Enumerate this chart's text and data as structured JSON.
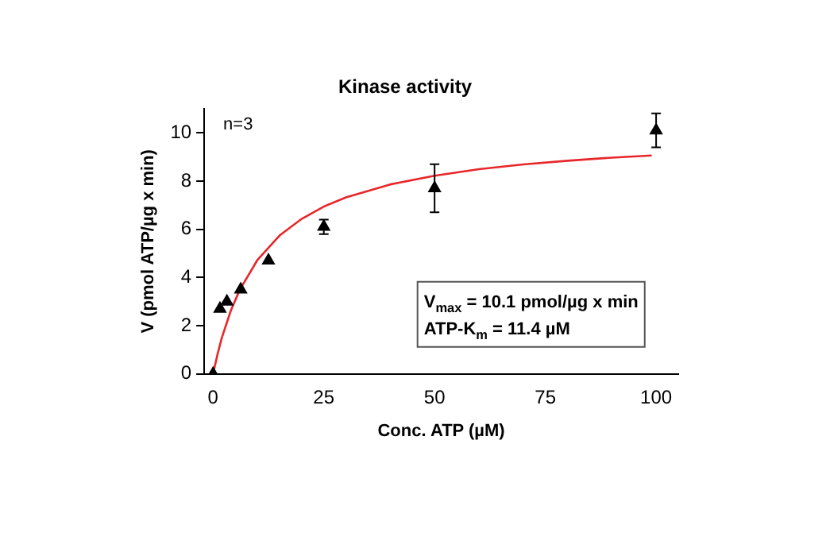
{
  "chart_data": {
    "type": "scatter",
    "title": "Kinase activity",
    "xlabel": "Conc. ATP (µM)",
    "ylabel": "V (pmol ATP/µg x min)",
    "xlim": [
      -2,
      105
    ],
    "xticks": [
      0,
      25,
      50,
      75,
      100
    ],
    "ylim": [
      0,
      11
    ],
    "yticks": [
      0,
      2,
      4,
      6,
      8,
      10
    ],
    "grid": false,
    "legend": false,
    "marker": "triangle",
    "annotations": [
      "n=3",
      "V$_{max}$ = 10.1 pmol/µg x min",
      "ATP-K$_{m}$ = 11.4 µM"
    ],
    "series": [
      {
        "type": "scatter",
        "color": "#000000",
        "x": [
          0,
          1.56,
          3.125,
          6.25,
          12.5,
          25,
          50,
          100
        ],
        "values": [
          0,
          2.7,
          3.0,
          3.5,
          4.7,
          6.1,
          7.7,
          10.1
        ],
        "errors": [
          null,
          null,
          null,
          null,
          null,
          0.3,
          1.0,
          0.7
        ]
      },
      {
        "type": "line",
        "marker": "none",
        "color": "#e8262a",
        "x": [
          0,
          1,
          2,
          4,
          6,
          10,
          15,
          20,
          25,
          30,
          40,
          50,
          60,
          70,
          80,
          90,
          99
        ],
        "values": [
          0,
          0.81,
          1.51,
          2.62,
          3.48,
          4.72,
          5.74,
          6.43,
          6.94,
          7.32,
          7.86,
          8.22,
          8.49,
          8.69,
          8.84,
          8.97,
          9.06
        ]
      }
    ]
  }
}
